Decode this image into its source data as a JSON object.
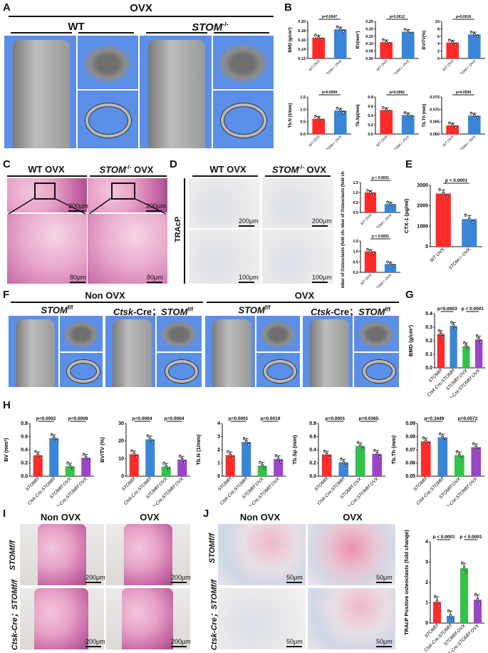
{
  "panel_letters": [
    "A",
    "B",
    "C",
    "D",
    "E",
    "F",
    "G",
    "H",
    "I",
    "J"
  ],
  "A": {
    "title": "OVX",
    "wt": "WT",
    "stom": "STOM",
    "stom_sup": "-/-"
  },
  "C": {
    "wt": "WT OVX",
    "stom": "STOM",
    "stom_sup": "-/-",
    "stom_suffix": " OVX",
    "scale_top_left": "200μm",
    "scale_top_right": "200μm",
    "scale_bot_left": "80μm",
    "scale_bot_right": "80μm"
  },
  "D": {
    "wt": "WT OVX",
    "stom": "STOM",
    "stom_sup": "-/-",
    "stom_suffix": " OVX",
    "side": "TRAcP",
    "scale_top_left": "200μm",
    "scale_top_right": "200μm",
    "scale_bot_left": "100μm",
    "scale_bot_right": "100μm"
  },
  "F": {
    "nonovx": "Non OVX",
    "ovx": "OVX",
    "g1": "STOM",
    "g1_sup": "f/f",
    "g2a": "Ctsk",
    "g2b": "-Cre；",
    "g2c": "STOM",
    "g2_sup": "f/f"
  },
  "I": {
    "nonovx": "Non OVX",
    "ovx": "OVX",
    "row1": "STOMf/f",
    "row2": "Ctsk-Cre；STOMf/f",
    "scale1": "200μm",
    "scale2": "200μm",
    "scale3": "200μm",
    "scale4": "200μm"
  },
  "J": {
    "nonovx": "Non OVX",
    "ovx": "OVX",
    "row1": "STOMf/f",
    "row2": "Ctsk-Cre；STOMf/f",
    "scale1": "50μm",
    "scale2": "50μm",
    "scale3": "50μm",
    "scale4": "50μm"
  },
  "colors": {
    "red": "#ff2a2a",
    "blue": "#3a86d6",
    "green": "#33c24a",
    "purple": "#9b45c9",
    "ct_bg": "#5b8fe8"
  },
  "chart_data": [
    {
      "id": "B1",
      "type": "bar",
      "ylabel": "BMD (g/cm³)",
      "ylim": [
        0.12,
        0.2
      ],
      "yticks": [
        "0.12",
        "0.14",
        "0.16",
        "0.18",
        "0.20"
      ],
      "categories": [
        "WT OVX",
        "STOM-/- OVX"
      ],
      "values": [
        0.165,
        0.183
      ],
      "pvalues": [
        "p=0.0047"
      ],
      "colors": [
        "red",
        "blue"
      ]
    },
    {
      "id": "B2",
      "type": "bar",
      "ylabel": "BV(mm³)",
      "ylim": [
        0,
        0.25
      ],
      "yticks": [
        "0.00",
        "0.05",
        "0.10",
        "0.15",
        "0.20",
        "0.25"
      ],
      "categories": [
        "WT OVX",
        "STOM-/- OVX"
      ],
      "values": [
        0.11,
        0.18
      ],
      "pvalues": [
        "p=0.0012"
      ],
      "colors": [
        "red",
        "blue"
      ]
    },
    {
      "id": "B3",
      "type": "bar",
      "ylabel": "BV/TV(%)",
      "ylim": [
        0,
        10
      ],
      "yticks": [
        "0",
        "2",
        "4",
        "6",
        "8",
        "10"
      ],
      "categories": [
        "WT OVX",
        "STOM-/- OVX"
      ],
      "values": [
        4.3,
        6.5
      ],
      "pvalues": [
        "p=0.0016"
      ],
      "colors": [
        "red",
        "blue"
      ]
    },
    {
      "id": "B4",
      "type": "bar",
      "ylabel": "Tb.N (1/mm)",
      "ylim": [
        0,
        1.5
      ],
      "yticks": [
        "0.0",
        "0.5",
        "1.0",
        "1.5"
      ],
      "categories": [
        "WT OVX",
        "STOM-/- OVX"
      ],
      "values": [
        0.62,
        0.95
      ],
      "pvalues": [
        "p=0.0009"
      ],
      "colors": [
        "red",
        "blue"
      ]
    },
    {
      "id": "B5",
      "type": "bar",
      "ylabel": "Tb.Sp(mm)",
      "ylim": [
        0,
        0.8
      ],
      "yticks": [
        "0.0",
        "0.2",
        "0.4",
        "0.6",
        "0.8"
      ],
      "categories": [
        "WT OVX",
        "STOM-/- OVX"
      ],
      "values": [
        0.52,
        0.41
      ],
      "pvalues": [
        "p=0.0081"
      ],
      "colors": [
        "red",
        "blue"
      ]
    },
    {
      "id": "B6",
      "type": "bar",
      "ylabel": "Tb.Th (mm)",
      "ylim": [
        0.06,
        0.075
      ],
      "yticks": [
        "0.060",
        "0.065",
        "0.070",
        "0.075"
      ],
      "categories": [
        "WT OVX",
        "STOM-/- OVX"
      ],
      "values": [
        0.0635,
        0.0675
      ],
      "pvalues": [
        "p=0.0594"
      ],
      "colors": [
        "red",
        "blue"
      ]
    },
    {
      "id": "D1",
      "type": "bar",
      "ylabel": "Number of Osteoclasts (fold change)",
      "ylim": [
        0,
        1.5
      ],
      "yticks": [
        "0.0",
        "0.5",
        "1.0",
        "1.5"
      ],
      "categories": [
        "WT OVX",
        "STOM-/- OVX"
      ],
      "values": [
        1.0,
        0.42
      ],
      "pvalues": [
        "p < 0.0001"
      ],
      "colors": [
        "red",
        "blue"
      ]
    },
    {
      "id": "D2",
      "type": "bar",
      "ylabel": "Number of Osteoclasts (fold change)",
      "ylim": [
        0,
        1.5
      ],
      "yticks": [
        "0.0",
        "0.5",
        "1.0",
        "1.5"
      ],
      "categories": [
        "WT OVX",
        "STOM-/- OVX"
      ],
      "values": [
        1.0,
        0.4
      ],
      "pvalues": [
        "p < 0.0001"
      ],
      "colors": [
        "red",
        "blue"
      ]
    },
    {
      "id": "E",
      "type": "bar",
      "ylabel": "CTX-1 (pg/ml)",
      "ylim": [
        0,
        3000
      ],
      "yticks": [
        "0",
        "1000",
        "2000",
        "3000"
      ],
      "categories": [
        "WT OVX",
        "STOM-/- OVX"
      ],
      "values": [
        2600,
        1350
      ],
      "pvalues": [
        "p < 0.0001"
      ],
      "colors": [
        "red",
        "blue"
      ]
    },
    {
      "id": "G",
      "type": "bar",
      "ylabel": "BMD (g/cm³)",
      "ylim": [
        0,
        0.4
      ],
      "yticks": [
        "0.0",
        "0.1",
        "0.2",
        "0.3",
        "0.4"
      ],
      "categories": [
        "STOMf/f",
        "Ctsk-Cre;STOMf/f",
        "STOMf/f OVX",
        "Ctsk-Cre;STOMf/f OVX"
      ],
      "values": [
        0.25,
        0.31,
        0.16,
        0.21
      ],
      "pvalues": [
        "p=0.0003",
        "p < 0.0001"
      ],
      "colors": [
        "red",
        "blue",
        "green",
        "purple"
      ]
    },
    {
      "id": "H1",
      "type": "bar",
      "ylabel": "BV (mm³)",
      "ylim": [
        0,
        0.8
      ],
      "yticks": [
        "0.0",
        "0.2",
        "0.4",
        "0.6",
        "0.8"
      ],
      "categories": [
        "STOMf/f",
        "Ctsk-Cre;STOMf/f",
        "STOMf/f OVX",
        "Ctsk-Cre;STOMf/f OVX"
      ],
      "values": [
        0.32,
        0.58,
        0.15,
        0.28
      ],
      "pvalues": [
        "p=0.0002",
        "p=0.0008"
      ],
      "colors": [
        "red",
        "blue",
        "green",
        "purple"
      ]
    },
    {
      "id": "H2",
      "type": "bar",
      "ylabel": "BV/TV (%)",
      "ylim": [
        0,
        30
      ],
      "yticks": [
        "0",
        "10",
        "20",
        "30"
      ],
      "categories": [
        "STOMf/f",
        "Ctsk-Cre;STOMf/f",
        "STOMf/f OVX",
        "Ctsk-Cre;STOMf/f OVX"
      ],
      "values": [
        12.5,
        21,
        5.5,
        9.5
      ],
      "pvalues": [
        "p=0.0004",
        "p=0.0004"
      ],
      "colors": [
        "red",
        "blue",
        "green",
        "purple"
      ]
    },
    {
      "id": "H3",
      "type": "bar",
      "ylabel": "Tb.N (1/mm)",
      "ylim": [
        0,
        4
      ],
      "yticks": [
        "0",
        "1",
        "2",
        "3",
        "4"
      ],
      "categories": [
        "STOMf/f",
        "Ctsk-Cre;STOMf/f",
        "STOMf/f OVX",
        "Ctsk-Cre;STOMf/f OVX"
      ],
      "values": [
        1.6,
        2.6,
        0.8,
        1.3
      ],
      "pvalues": [
        "p=0.0001",
        "p=0.0019"
      ],
      "colors": [
        "red",
        "blue",
        "green",
        "purple"
      ]
    },
    {
      "id": "H4",
      "type": "bar",
      "ylabel": "Tb.Sp (mm)",
      "ylim": [
        0,
        0.8
      ],
      "yticks": [
        "0.0",
        "0.2",
        "0.4",
        "0.6",
        "0.8"
      ],
      "categories": [
        "STOMf/f",
        "Ctsk-Cre;STOMf/f",
        "STOMf/f OVX",
        "Ctsk-Cre;STOMf/f OVX"
      ],
      "values": [
        0.33,
        0.21,
        0.46,
        0.34
      ],
      "pvalues": [
        "p=0.0001",
        "p=0.0365"
      ],
      "colors": [
        "red",
        "blue",
        "green",
        "purple"
      ]
    },
    {
      "id": "H5",
      "type": "bar",
      "ylabel": "Tb.Th (mm)",
      "ylim": [
        0.05,
        0.09
      ],
      "yticks": [
        "0.05",
        "0.06",
        "0.07",
        "0.08",
        "0.09"
      ],
      "categories": [
        "STOMf/f",
        "Ctsk-Cre;STOMf/f",
        "STOMf/f OVX",
        "Ctsk-Cre;STOMf/f OVX"
      ],
      "values": [
        0.0765,
        0.0795,
        0.066,
        0.072
      ],
      "pvalues": [
        "p=0.3449",
        "p=0.0572"
      ],
      "colors": [
        "red",
        "blue",
        "green",
        "purple"
      ]
    },
    {
      "id": "J1",
      "type": "bar",
      "ylabel": "TRAcP Positive osteoclasts (fold change)",
      "ylim": [
        0,
        4
      ],
      "yticks": [
        "0",
        "1",
        "2",
        "3",
        "4"
      ],
      "categories": [
        "STOMf/f",
        "Ctsk-Cre;STOMf/f",
        "STOMf/f OVX",
        "Ctsk-Cre;STOMf/f OVX"
      ],
      "values": [
        1.05,
        0.35,
        2.7,
        1.15
      ],
      "pvalues": [
        "p < 0.0001",
        "p < 0.0001"
      ],
      "colors": [
        "red",
        "blue",
        "green",
        "purple"
      ]
    }
  ]
}
